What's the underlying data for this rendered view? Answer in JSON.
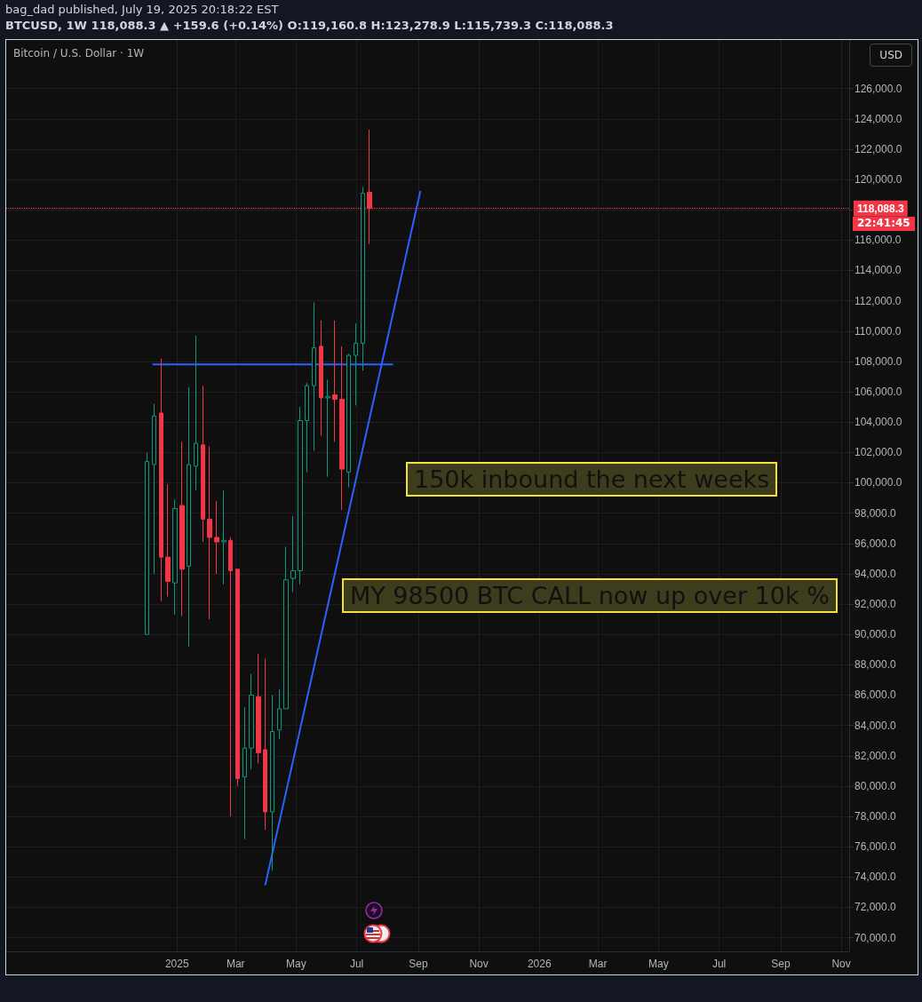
{
  "chart_data": {
    "type": "candlestick",
    "title": "bag_dad published, July 19, 2025 20:18:22 EST",
    "subtitle": "BTCUSD, 1W 118,088.3 ▲ +159.6 (+0.14%) O:119,160.8 H:123,278.9 L:115,739.3 C:118,088.3",
    "x": [
      "2024-12-02",
      "2024-12-09",
      "2024-12-16",
      "2024-12-23",
      "2024-12-30",
      "2025-01-06",
      "2025-01-13",
      "2025-01-20",
      "2025-01-27",
      "2025-02-03",
      "2025-02-10",
      "2025-02-17",
      "2025-02-24",
      "2025-03-03",
      "2025-03-10",
      "2025-03-17",
      "2025-03-24",
      "2025-03-31",
      "2025-04-07",
      "2025-04-14",
      "2025-04-21",
      "2025-04-28",
      "2025-05-05",
      "2025-05-12",
      "2025-05-19",
      "2025-05-26",
      "2025-06-02",
      "2025-06-09",
      "2025-06-16",
      "2025-06-23",
      "2025-06-30",
      "2025-07-07",
      "2025-07-14"
    ],
    "ohlc": [
      [
        90000,
        102000,
        90000,
        101400
      ],
      [
        101200,
        105200,
        94000,
        104400
      ],
      [
        104600,
        108200,
        92200,
        95100
      ],
      [
        95100,
        99900,
        92500,
        93500
      ],
      [
        93400,
        98900,
        91300,
        98300
      ],
      [
        98500,
        102700,
        91200,
        94300
      ],
      [
        94500,
        106300,
        89200,
        101200
      ],
      [
        101100,
        109700,
        99500,
        102600
      ],
      [
        102500,
        106400,
        96100,
        97600
      ],
      [
        97600,
        102400,
        91000,
        96400
      ],
      [
        96400,
        98800,
        94000,
        96100
      ],
      [
        96100,
        99500,
        93300,
        96200
      ],
      [
        96200,
        96400,
        78000,
        94200
      ],
      [
        94300,
        94300,
        80000,
        80500
      ],
      [
        80600,
        85200,
        76500,
        82500
      ],
      [
        82500,
        87400,
        81100,
        86000
      ],
      [
        85900,
        88700,
        81500,
        82200
      ],
      [
        82400,
        88400,
        77100,
        78300
      ],
      [
        78300,
        86000,
        74400,
        83600
      ],
      [
        83700,
        86400,
        83100,
        85100
      ],
      [
        85100,
        95800,
        85100,
        93600
      ],
      [
        93700,
        97800,
        92800,
        94200
      ],
      [
        94200,
        105000,
        93300,
        104100
      ],
      [
        104100,
        106600,
        100700,
        106400
      ],
      [
        106400,
        111900,
        102100,
        108900
      ],
      [
        109000,
        110700,
        103100,
        105600
      ],
      [
        105600,
        106800,
        100400,
        105700
      ],
      [
        105800,
        110700,
        102700,
        105500
      ],
      [
        105500,
        109000,
        98200,
        100900
      ],
      [
        100700,
        108500,
        99700,
        108400
      ],
      [
        108400,
        110500,
        105100,
        109200
      ],
      [
        109200,
        119500,
        107400,
        119100
      ],
      [
        119160.8,
        123278.9,
        115739.3,
        118088.3
      ]
    ],
    "colors": [
      "#089981",
      "#089981",
      "#f23645",
      "#f23645",
      "#089981",
      "#f23645",
      "#089981",
      "#089981",
      "#f23645",
      "#f23645",
      "#f23645",
      "#089981",
      "#f23645",
      "#f23645",
      "#089981",
      "#089981",
      "#f23645",
      "#f23645",
      "#089981",
      "#089981",
      "#089981",
      "#089981",
      "#089981",
      "#089981",
      "#089981",
      "#f23645",
      "#089981",
      "#f23645",
      "#f23645",
      "#089981",
      "#089981",
      "#089981",
      "#f23645"
    ],
    "series": [
      {
        "type": "line",
        "color": "#2962ff",
        "x": [
          "2024-12-08",
          "2025-08-06"
        ],
        "values": [
          107800,
          107800
        ]
      },
      {
        "type": "line",
        "color": "#2962ff",
        "x": [
          "2025-03-31",
          "2025-09-03"
        ],
        "values": [
          73500,
          119200
        ]
      }
    ],
    "marker": "none",
    "line_style": "solid",
    "grid": true,
    "xlim": [
      "2024-07-13",
      "2026-11-09"
    ],
    "xticks": [
      {
        "value": "2025-01-01",
        "label": "2025"
      },
      {
        "value": "2025-03-01",
        "label": "Mar"
      },
      {
        "value": "2025-05-01",
        "label": "May"
      },
      {
        "value": "2025-07-01",
        "label": "Jul"
      },
      {
        "value": "2025-09-01",
        "label": "Sep"
      },
      {
        "value": "2025-11-01",
        "label": "Nov"
      },
      {
        "value": "2026-01-01",
        "label": "2026"
      },
      {
        "value": "2026-03-01",
        "label": "Mar"
      },
      {
        "value": "2026-05-01",
        "label": "May"
      },
      {
        "value": "2026-07-01",
        "label": "Jul"
      },
      {
        "value": "2026-09-01",
        "label": "Sep"
      },
      {
        "value": "2026-11-01",
        "label": "Nov"
      }
    ],
    "ylim": [
      69100,
      129200
    ],
    "yticks": [
      {
        "value": 70000,
        "label": "70,000.0"
      },
      {
        "value": 72000,
        "label": "72,000.0"
      },
      {
        "value": 74000,
        "label": "74,000.0"
      },
      {
        "value": 76000,
        "label": "76,000.0"
      },
      {
        "value": 78000,
        "label": "78,000.0"
      },
      {
        "value": 80000,
        "label": "80,000.0"
      },
      {
        "value": 82000,
        "label": "82,000.0"
      },
      {
        "value": 84000,
        "label": "84,000.0"
      },
      {
        "value": 86000,
        "label": "86,000.0"
      },
      {
        "value": 88000,
        "label": "88,000.0"
      },
      {
        "value": 90000,
        "label": "90,000.0"
      },
      {
        "value": 92000,
        "label": "92,000.0"
      },
      {
        "value": 94000,
        "label": "94,000.0"
      },
      {
        "value": 96000,
        "label": "96,000.0"
      },
      {
        "value": 98000,
        "label": "98,000.0"
      },
      {
        "value": 100000,
        "label": "100,000.0"
      },
      {
        "value": 102000,
        "label": "102,000.0"
      },
      {
        "value": 104000,
        "label": "104,000.0"
      },
      {
        "value": 106000,
        "label": "106,000.0"
      },
      {
        "value": 108000,
        "label": "108,000.0"
      },
      {
        "value": 110000,
        "label": "110,000.0"
      },
      {
        "value": 112000,
        "label": "112,000.0"
      },
      {
        "value": 114000,
        "label": "114,000.0"
      },
      {
        "value": 116000,
        "label": "116,000.0"
      },
      {
        "value": 118000,
        "label": null
      },
      {
        "value": 120000,
        "label": "120,000.0"
      },
      {
        "value": 122000,
        "label": "122,000.0"
      },
      {
        "value": 124000,
        "label": "124,000.0"
      },
      {
        "value": 126000,
        "label": "126,000.0"
      }
    ],
    "ref_lines": [
      {
        "axis": "y",
        "value": 118088.3,
        "label": "118,088.3",
        "color": "#f23645",
        "line_style": "dotted"
      }
    ],
    "annotations": [
      "Bitcoin / U.S. Dollar · 1W",
      "150k inbound the next weeks",
      "MY 98500 BTC CALL now up over 10k %",
      "USD",
      "22:41:45"
    ]
  }
}
